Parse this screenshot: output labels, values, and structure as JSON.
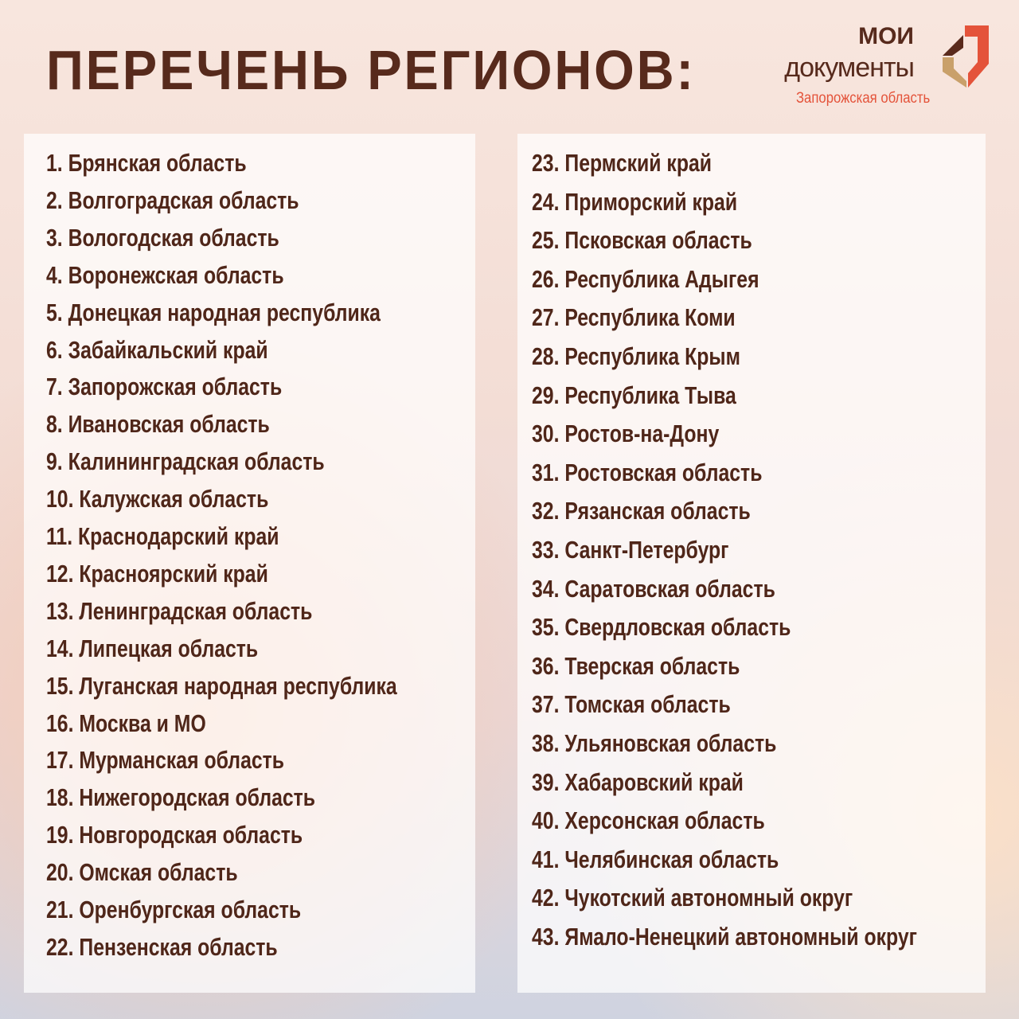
{
  "title": "ПЕРЕЧЕНЬ РЕГИОНОВ:",
  "logo": {
    "line1": "МОИ",
    "line2": "документы",
    "region": "Запорожская область"
  },
  "colors": {
    "text": "#572a1c",
    "accent": "#e4533a",
    "gold": "#c9a06a"
  },
  "left_column": [
    "1. Брянская область",
    "2. Волгоградская область",
    "3. Вологодская область",
    "4. Воронежская область",
    "5. Донецкая народная республика",
    "6. Забайкальский край",
    "7. Запорожская область",
    "8. Ивановская область",
    "9. Калининградская область",
    "10. Калужская область",
    "11. Краснодарский край",
    "12. Красноярский край",
    "13. Ленинградская область",
    "14. Липецкая область",
    "15. Луганская народная республика",
    "16. Москва и МО",
    "17. Мурманская область",
    "18. Нижегородская область",
    "19. Новгородская область",
    "20. Омская область",
    "21. Оренбургская область",
    "22. Пензенская область"
  ],
  "right_column": [
    "23. Пермский край",
    "24. Приморский край",
    "25. Псковская область",
    "26. Республика Адыгея",
    "27. Республика Коми",
    "28. Республика Крым",
    "29. Республика Тыва",
    "30. Ростов-на-Дону",
    "31. Ростовская область",
    "32. Рязанская область",
    "33. Санкт-Петербург",
    "34. Саратовская область",
    "35. Свердловская область",
    "36. Тверская область",
    "37. Томская область",
    "38. Ульяновская область",
    "39. Хабаровский край",
    "40. Херсонская область",
    "41. Челябинская область",
    "42. Чукотский автономный округ",
    "43. Ямало-Ненецкий автономный округ"
  ]
}
